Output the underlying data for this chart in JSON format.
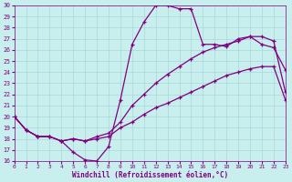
{
  "xlabel": "Windchill (Refroidissement éolien,°C)",
  "xlim": [
    0,
    23
  ],
  "ylim": [
    16,
    30
  ],
  "yticks": [
    16,
    17,
    18,
    19,
    20,
    21,
    22,
    23,
    24,
    25,
    26,
    27,
    28,
    29,
    30
  ],
  "xticks": [
    0,
    1,
    2,
    3,
    4,
    5,
    6,
    7,
    8,
    9,
    10,
    11,
    12,
    13,
    14,
    15,
    16,
    17,
    18,
    19,
    20,
    21,
    22,
    23
  ],
  "bg_color": "#c8eeee",
  "grid_color": "#a8d8d8",
  "line_color": "#800080",
  "curve1_x": [
    0,
    1,
    2,
    3,
    4,
    5,
    6,
    7,
    8,
    9,
    10,
    11,
    12,
    13,
    14,
    15,
    16,
    17,
    18,
    19,
    20,
    21,
    22,
    23
  ],
  "curve1_y": [
    20.0,
    18.8,
    18.2,
    18.2,
    17.8,
    16.8,
    16.1,
    16.0,
    17.3,
    21.5,
    26.5,
    28.5,
    30.0,
    30.0,
    29.7,
    29.7,
    26.5,
    26.5,
    26.3,
    27.0,
    27.2,
    26.5,
    26.2,
    24.2
  ],
  "curve2_x": [
    0,
    1,
    2,
    3,
    4,
    5,
    6,
    7,
    8,
    9,
    10,
    11,
    12,
    13,
    14,
    15,
    16,
    17,
    18,
    19,
    20,
    21,
    22,
    23
  ],
  "curve2_y": [
    20.0,
    18.8,
    18.2,
    18.2,
    17.8,
    18.0,
    17.8,
    18.2,
    18.5,
    19.5,
    21.0,
    22.0,
    23.0,
    23.8,
    24.5,
    25.2,
    25.8,
    26.2,
    26.5,
    26.8,
    27.2,
    27.2,
    26.8,
    22.2
  ],
  "curve3_x": [
    0,
    1,
    2,
    3,
    4,
    5,
    6,
    7,
    8,
    9,
    10,
    11,
    12,
    13,
    14,
    15,
    16,
    17,
    18,
    19,
    20,
    21,
    22,
    23
  ],
  "curve3_y": [
    20.0,
    18.8,
    18.2,
    18.2,
    17.8,
    18.0,
    17.8,
    18.0,
    18.2,
    19.0,
    19.5,
    20.2,
    20.8,
    21.2,
    21.7,
    22.2,
    22.7,
    23.2,
    23.7,
    24.0,
    24.3,
    24.5,
    24.5,
    21.5
  ]
}
